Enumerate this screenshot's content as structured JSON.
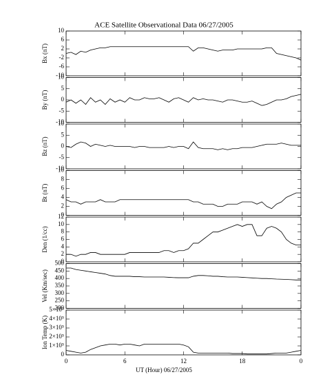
{
  "title": "ACE Satellite Observational Data   06/27/2005",
  "xlabel": "UT (Hour)   06/27/2005",
  "chart_data": [
    {
      "type": "line",
      "ylabel": "Bx (nT)",
      "color": "#000000",
      "xlim": [
        0,
        24
      ],
      "ylim": [
        -10,
        10
      ],
      "yticks": [
        -10,
        -6,
        -2,
        2,
        6,
        10
      ],
      "x": [
        0,
        0.5,
        1,
        1.5,
        2,
        2.5,
        3,
        3.5,
        4,
        4.5,
        5,
        5.5,
        6,
        6.5,
        7,
        7.5,
        8,
        8.5,
        9,
        9.5,
        10,
        10.5,
        11,
        11.5,
        12,
        12.5,
        13,
        13.5,
        14,
        14.5,
        15,
        15.5,
        16,
        16.5,
        17,
        17.5,
        18,
        18.5,
        19,
        19.5,
        20,
        20.5,
        21,
        21.5,
        22,
        22.5,
        23,
        23.5,
        24
      ],
      "values": [
        0,
        0.5,
        -0.5,
        1,
        0.5,
        1.5,
        2,
        2.5,
        2.5,
        3,
        3,
        3,
        3,
        3,
        3,
        3,
        3,
        3,
        3,
        3,
        3,
        3,
        3,
        3,
        3,
        3,
        1,
        2.5,
        2.5,
        2,
        1.5,
        1,
        1.5,
        1.5,
        1.5,
        2,
        2,
        2,
        2,
        2,
        2,
        2.5,
        2.5,
        0,
        -0.5,
        -1,
        -1.5,
        -2,
        -3
      ]
    },
    {
      "type": "line",
      "ylabel": "By (nT)",
      "color": "#000000",
      "xlim": [
        0,
        24
      ],
      "ylim": [
        -10,
        10
      ],
      "yticks": [
        -10,
        -5,
        0,
        5,
        10
      ],
      "x": [
        0,
        0.5,
        1,
        1.5,
        2,
        2.5,
        3,
        3.5,
        4,
        4.5,
        5,
        5.5,
        6,
        6.5,
        7,
        7.5,
        8,
        8.5,
        9,
        9.5,
        10,
        10.5,
        11,
        11.5,
        12,
        12.5,
        13,
        13.5,
        14,
        14.5,
        15,
        15.5,
        16,
        16.5,
        17,
        17.5,
        18,
        18.5,
        19,
        19.5,
        20,
        20.5,
        21,
        21.5,
        22,
        22.5,
        23,
        23.5,
        24
      ],
      "values": [
        -1,
        0,
        -1.5,
        0,
        -2,
        1,
        -1,
        0,
        -2,
        0.5,
        -1,
        0,
        -1,
        1,
        0,
        0,
        1,
        0.5,
        0.5,
        1,
        0,
        -1,
        0.5,
        1,
        0,
        -1,
        1,
        0,
        0.5,
        0,
        0,
        -0.5,
        -1,
        0,
        0,
        -0.5,
        -1,
        -1,
        -0.5,
        -1.5,
        -2.5,
        -2,
        -1,
        0,
        0,
        0.5,
        1.5,
        2,
        2.5
      ]
    },
    {
      "type": "line",
      "ylabel": "Bz (nT)",
      "color": "#000000",
      "xlim": [
        0,
        24
      ],
      "ylim": [
        -10,
        10
      ],
      "yticks": [
        -10,
        -5,
        0,
        5,
        10
      ],
      "x": [
        0,
        0.5,
        1,
        1.5,
        2,
        2.5,
        3,
        3.5,
        4,
        4.5,
        5,
        5.5,
        6,
        6.5,
        7,
        7.5,
        8,
        8.5,
        9,
        9.5,
        10,
        10.5,
        11,
        11.5,
        12,
        12.5,
        13,
        13.5,
        14,
        14.5,
        15,
        15.5,
        16,
        16.5,
        17,
        17.5,
        18,
        18.5,
        19,
        19.5,
        20,
        20.5,
        21,
        21.5,
        22,
        22.5,
        23,
        23.5,
        24
      ],
      "values": [
        0,
        -0.5,
        1,
        2,
        1.5,
        0,
        1,
        0.5,
        0,
        0.5,
        0,
        0,
        0,
        0,
        -0.5,
        0,
        0,
        -0.5,
        -0.5,
        -0.5,
        -0.5,
        0,
        -0.5,
        0,
        0,
        -1,
        2,
        -0.5,
        -1,
        -1,
        -1,
        -1.5,
        -1,
        -1.5,
        -1,
        -1,
        -0.5,
        -0.5,
        -0.5,
        0,
        0.5,
        1,
        1,
        1,
        1.5,
        1,
        0.5,
        0.5,
        0.5
      ]
    },
    {
      "type": "line",
      "ylabel": "Bt (nT)",
      "color": "#000000",
      "xlim": [
        0,
        24
      ],
      "ylim": [
        0,
        10
      ],
      "yticks": [
        0,
        2,
        4,
        6,
        8,
        10
      ],
      "x": [
        0,
        0.5,
        1,
        1.5,
        2,
        2.5,
        3,
        3.5,
        4,
        4.5,
        5,
        5.5,
        6,
        6.5,
        7,
        7.5,
        8,
        8.5,
        9,
        9.5,
        10,
        10.5,
        11,
        11.5,
        12,
        12.5,
        13,
        13.5,
        14,
        14.5,
        15,
        15.5,
        16,
        16.5,
        17,
        17.5,
        18,
        18.5,
        19,
        19.5,
        20,
        20.5,
        21,
        21.5,
        22,
        22.5,
        23,
        23.5,
        24
      ],
      "values": [
        3.5,
        3,
        3,
        2.5,
        3,
        3,
        3,
        3.5,
        3,
        3,
        3,
        3.5,
        3.5,
        3.5,
        3.5,
        3.5,
        3.5,
        3.5,
        3.5,
        3.5,
        3.5,
        3.5,
        3.5,
        3.5,
        3.5,
        3.5,
        3,
        3,
        2.5,
        2.5,
        2.5,
        2,
        2,
        2.5,
        2.5,
        2.5,
        3,
        3,
        3,
        2.5,
        3,
        2,
        1.5,
        2.5,
        3,
        4,
        4.5,
        5,
        5
      ]
    },
    {
      "type": "line",
      "ylabel": "Den (1/cc)",
      "color": "#000000",
      "xlim": [
        0,
        24
      ],
      "ylim": [
        0,
        12
      ],
      "yticks": [
        0,
        2,
        4,
        6,
        8,
        10,
        12
      ],
      "x": [
        0,
        0.5,
        1,
        1.5,
        2,
        2.5,
        3,
        3.5,
        4,
        4.5,
        5,
        5.5,
        6,
        6.5,
        7,
        7.5,
        8,
        8.5,
        9,
        9.5,
        10,
        10.5,
        11,
        11.5,
        12,
        12.5,
        13,
        13.5,
        14,
        14.5,
        15,
        15.5,
        16,
        16.5,
        17,
        17.5,
        18,
        18.5,
        19,
        19.5,
        20,
        20.5,
        21,
        21.5,
        22,
        22.5,
        23,
        23.5,
        24
      ],
      "values": [
        2,
        2,
        1.5,
        2,
        2,
        2.5,
        2.5,
        2,
        2,
        2,
        2,
        2,
        2,
        2.5,
        2.5,
        2.5,
        2.5,
        2.5,
        2.5,
        2.5,
        3,
        3,
        2.5,
        3,
        3,
        3.5,
        5,
        5,
        6,
        7,
        8,
        8,
        8.5,
        9,
        9.5,
        10,
        9.5,
        10,
        10,
        7,
        7,
        9,
        9.5,
        9,
        8,
        6,
        5,
        4.5,
        4.5
      ]
    },
    {
      "type": "line",
      "ylabel": "Vel (Km/sec)",
      "color": "#000000",
      "xlim": [
        0,
        24
      ],
      "ylim": [
        200,
        500
      ],
      "yticks": [
        200,
        250,
        300,
        350,
        400,
        450,
        500
      ],
      "x": [
        0,
        0.5,
        1,
        1.5,
        2,
        2.5,
        3,
        3.5,
        4,
        4.5,
        5,
        5.5,
        6,
        6.5,
        7,
        7.5,
        8,
        8.5,
        9,
        9.5,
        10,
        10.5,
        11,
        11.5,
        12,
        12.5,
        13,
        13.5,
        14,
        14.5,
        15,
        15.5,
        16,
        16.5,
        17,
        17.5,
        18,
        18.5,
        19,
        19.5,
        20,
        20.5,
        21,
        21.5,
        22,
        22.5,
        23,
        23.5,
        24
      ],
      "values": [
        470,
        470,
        460,
        455,
        450,
        445,
        440,
        435,
        430,
        420,
        415,
        415,
        415,
        415,
        412,
        412,
        410,
        410,
        410,
        410,
        410,
        408,
        406,
        405,
        405,
        405,
        415,
        420,
        420,
        418,
        415,
        415,
        412,
        410,
        410,
        410,
        408,
        406,
        404,
        402,
        400,
        400,
        398,
        396,
        395,
        394,
        392,
        390,
        390
      ]
    },
    {
      "type": "line",
      "ylabel": "Ion Temp (K)",
      "color": "#000000",
      "xlim": [
        0,
        24
      ],
      "ylim": [
        0,
        500000
      ],
      "yticks": [
        0,
        {
          "value": 100000,
          "label": "1×10⁵"
        },
        {
          "value": 200000,
          "label": "2×10⁵"
        },
        {
          "value": 300000,
          "label": "3×10⁵"
        },
        {
          "value": 400000,
          "label": "4×10⁵"
        },
        {
          "value": 500000,
          "label": "5×10⁵"
        }
      ],
      "xticks": [
        0,
        6,
        12,
        18,
        {
          "value": 24,
          "label": "0"
        }
      ],
      "x": [
        0,
        0.5,
        1,
        1.5,
        2,
        2.5,
        3,
        3.5,
        4,
        4.5,
        5,
        5.5,
        6,
        6.5,
        7,
        7.5,
        8,
        8.5,
        9,
        9.5,
        10,
        10.5,
        11,
        11.5,
        12,
        12.5,
        13,
        13.5,
        14,
        14.5,
        15,
        15.5,
        16,
        16.5,
        17,
        17.5,
        18,
        18.5,
        19,
        19.5,
        20,
        20.5,
        21,
        21.5,
        22,
        22.5,
        23,
        23.5,
        24
      ],
      "values": [
        50000,
        40000,
        30000,
        20000,
        30000,
        60000,
        80000,
        100000,
        110000,
        120000,
        120000,
        110000,
        120000,
        120000,
        110000,
        100000,
        120000,
        120000,
        120000,
        120000,
        120000,
        120000,
        120000,
        120000,
        110000,
        90000,
        30000,
        20000,
        20000,
        20000,
        20000,
        20000,
        20000,
        20000,
        15000,
        15000,
        15000,
        10000,
        10000,
        10000,
        10000,
        10000,
        15000,
        20000,
        20000,
        20000,
        30000,
        40000,
        50000
      ]
    }
  ]
}
